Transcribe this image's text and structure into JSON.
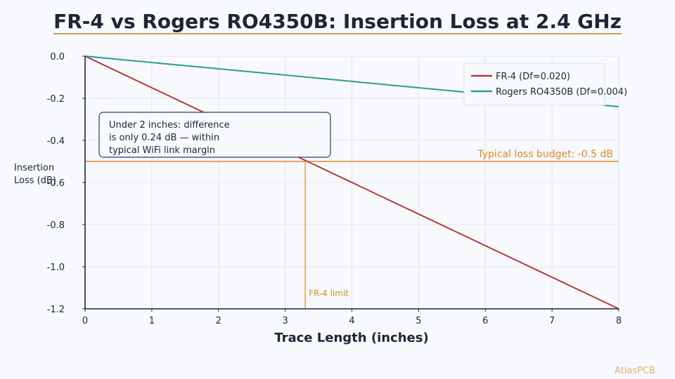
{
  "chart_data": {
    "type": "line",
    "title": "FR-4 vs Rogers RO4350B: Insertion Loss at 2.4 GHz",
    "xlabel": "Trace Length (inches)",
    "ylabel_lines": [
      "Insertion",
      "Loss (dB)"
    ],
    "xlim": [
      0,
      8
    ],
    "ylim": [
      -1.2,
      0.0
    ],
    "x_ticks": [
      0,
      1,
      2,
      3,
      4,
      5,
      6,
      7,
      8
    ],
    "y_ticks": [
      0.0,
      -0.2,
      -0.4,
      -0.6,
      -0.8,
      -1.0,
      -1.2
    ],
    "y_tick_labels": [
      "0.0",
      "-0.2",
      "-0.4",
      "-0.6",
      "-0.8",
      "-1.0",
      "-1.2"
    ],
    "grid": true,
    "legend_position": "top-right",
    "series": [
      {
        "name": "FR-4 (Df=0.020)",
        "color": "#b53a3a",
        "x": [
          0,
          8
        ],
        "y": [
          0.0,
          -1.2
        ]
      },
      {
        "name": "Rogers RO4350B (Df=0.004)",
        "color": "#2a9d8f",
        "x": [
          0,
          8
        ],
        "y": [
          0.0,
          -0.24
        ]
      }
    ],
    "reference_line": {
      "y": -0.5,
      "label": "Typical loss budget: -0.5 dB",
      "color": "#d9892a"
    },
    "limit_line": {
      "x": 3.3,
      "label": "FR-4 limit",
      "color": "#d9892a"
    },
    "annotation": {
      "lines": [
        "Under 2 inches: difference",
        "is only 0.24 dB — within",
        "typical WiFi link margin"
      ]
    }
  },
  "watermark": "AtlasPCB",
  "colors": {
    "background": "#f7f9fc",
    "title_rule": "#c8a15a",
    "axis": "#1e2535",
    "grid": "#e3e7ee",
    "annotation_border": "#2d3a6b",
    "watermark": "#e0b070"
  }
}
